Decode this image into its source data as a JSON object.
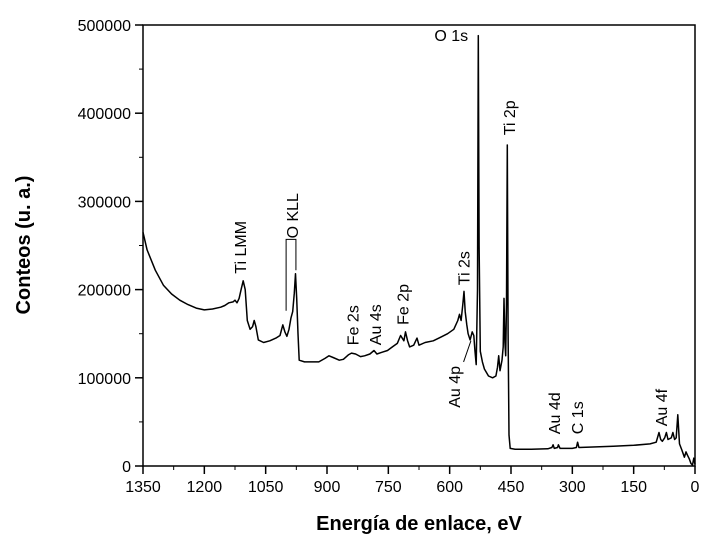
{
  "chart_data": {
    "type": "line",
    "title": "",
    "xlabel": "Energía de enlace, eV",
    "ylabel": "Conteos (u. a.)",
    "xlim": [
      1350,
      0
    ],
    "ylim": [
      0,
      500000
    ],
    "x_reversed": true,
    "grid": false,
    "legend": "none",
    "x_ticks": [
      1350,
      1200,
      1050,
      900,
      750,
      600,
      450,
      300,
      150,
      0
    ],
    "y_ticks": [
      0,
      100000,
      200000,
      300000,
      400000,
      500000
    ],
    "series": [
      {
        "color": "#000000",
        "points": [
          [
            1350,
            265000
          ],
          [
            1340,
            245000
          ],
          [
            1320,
            222000
          ],
          [
            1300,
            205000
          ],
          [
            1280,
            195000
          ],
          [
            1260,
            188000
          ],
          [
            1240,
            183000
          ],
          [
            1220,
            179000
          ],
          [
            1200,
            177000
          ],
          [
            1180,
            178000
          ],
          [
            1160,
            180000
          ],
          [
            1150,
            182000
          ],
          [
            1140,
            185000
          ],
          [
            1130,
            186000
          ],
          [
            1125,
            188000
          ],
          [
            1120,
            185000
          ],
          [
            1115,
            190000
          ],
          [
            1110,
            200000
          ],
          [
            1105,
            210000
          ],
          [
            1100,
            200000
          ],
          [
            1095,
            165000
          ],
          [
            1088,
            155000
          ],
          [
            1082,
            158000
          ],
          [
            1078,
            165000
          ],
          [
            1074,
            158000
          ],
          [
            1068,
            143000
          ],
          [
            1055,
            140000
          ],
          [
            1040,
            142000
          ],
          [
            1025,
            145000
          ],
          [
            1015,
            148000
          ],
          [
            1008,
            160000
          ],
          [
            1003,
            152000
          ],
          [
            998,
            147000
          ],
          [
            993,
            155000
          ],
          [
            988,
            168000
          ],
          [
            984,
            175000
          ],
          [
            980,
            196000
          ],
          [
            977,
            218000
          ],
          [
            974,
            190000
          ],
          [
            971,
            150000
          ],
          [
            968,
            120000
          ],
          [
            955,
            118000
          ],
          [
            940,
            118000
          ],
          [
            920,
            118000
          ],
          [
            905,
            122000
          ],
          [
            895,
            125000
          ],
          [
            885,
            123000
          ],
          [
            870,
            120000
          ],
          [
            860,
            121000
          ],
          [
            848,
            126000
          ],
          [
            840,
            128000
          ],
          [
            830,
            127000
          ],
          [
            818,
            124000
          ],
          [
            808,
            125000
          ],
          [
            795,
            127000
          ],
          [
            785,
            131000
          ],
          [
            778,
            127000
          ],
          [
            765,
            129000
          ],
          [
            752,
            131000
          ],
          [
            740,
            135000
          ],
          [
            728,
            139000
          ],
          [
            720,
            148000
          ],
          [
            712,
            142000
          ],
          [
            708,
            152000
          ],
          [
            703,
            142000
          ],
          [
            698,
            135000
          ],
          [
            688,
            137000
          ],
          [
            680,
            145000
          ],
          [
            675,
            137000
          ],
          [
            660,
            140000
          ],
          [
            640,
            142000
          ],
          [
            622,
            146000
          ],
          [
            605,
            150000
          ],
          [
            590,
            155000
          ],
          [
            580,
            165000
          ],
          [
            576,
            172000
          ],
          [
            572,
            165000
          ],
          [
            568,
            183000
          ],
          [
            565,
            198000
          ],
          [
            562,
            175000
          ],
          [
            558,
            160000
          ],
          [
            555,
            150000
          ],
          [
            550,
            143000
          ],
          [
            545,
            152000
          ],
          [
            541,
            148000
          ],
          [
            538,
            130000
          ],
          [
            535,
            115000
          ],
          [
            532,
            200000
          ],
          [
            530,
            488000
          ],
          [
            528,
            250000
          ],
          [
            525,
            130000
          ],
          [
            520,
            118000
          ],
          [
            515,
            110000
          ],
          [
            505,
            102000
          ],
          [
            495,
            100000
          ],
          [
            487,
            102000
          ],
          [
            483,
            112000
          ],
          [
            480,
            125000
          ],
          [
            477,
            108000
          ],
          [
            472,
            120000
          ],
          [
            469,
            135000
          ],
          [
            467,
            190000
          ],
          [
            465,
            140000
          ],
          [
            463,
            125000
          ],
          [
            461,
            185000
          ],
          [
            459,
            364000
          ],
          [
            457,
            150000
          ],
          [
            455,
            35000
          ],
          [
            452,
            20000
          ],
          [
            440,
            19000
          ],
          [
            400,
            19000
          ],
          [
            360,
            19500
          ],
          [
            350,
            21000
          ],
          [
            347,
            24000
          ],
          [
            344,
            20000
          ],
          [
            336,
            21000
          ],
          [
            334,
            24000
          ],
          [
            330,
            20000
          ],
          [
            300,
            20000
          ],
          [
            290,
            21000
          ],
          [
            287,
            27000
          ],
          [
            284,
            21000
          ],
          [
            250,
            21500
          ],
          [
            200,
            22500
          ],
          [
            150,
            23500
          ],
          [
            110,
            25000
          ],
          [
            95,
            27000
          ],
          [
            88,
            38000
          ],
          [
            84,
            30000
          ],
          [
            80,
            28000
          ],
          [
            74,
            32000
          ],
          [
            70,
            38000
          ],
          [
            66,
            30000
          ],
          [
            58,
            32000
          ],
          [
            54,
            38000
          ],
          [
            50,
            30000
          ],
          [
            46,
            32000
          ],
          [
            42,
            58000
          ],
          [
            38,
            25000
          ],
          [
            32,
            18000
          ],
          [
            26,
            10000
          ],
          [
            22,
            16000
          ],
          [
            18,
            12000
          ],
          [
            14,
            8000
          ],
          [
            10,
            3000
          ],
          [
            6,
            1000
          ],
          [
            3,
            9000
          ],
          [
            0,
            2000
          ]
        ]
      }
    ],
    "annotations": [
      {
        "text": "Ti LMM",
        "x": 1113,
        "y": 218000,
        "rotate": true,
        "anchor": "start"
      },
      {
        "text": "O KLL",
        "x": 985,
        "y": 258000,
        "rotate": true,
        "anchor": "start"
      },
      {
        "text": "Fe 2s",
        "x": 838,
        "y": 137000,
        "rotate": true,
        "anchor": "start"
      },
      {
        "text": "Au 4s",
        "x": 782,
        "y": 137000,
        "rotate": true,
        "anchor": "start"
      },
      {
        "text": "Fe 2p",
        "x": 715,
        "y": 160000,
        "rotate": true,
        "anchor": "start"
      },
      {
        "text": "Ti 2s",
        "x": 566,
        "y": 205000,
        "rotate": true,
        "anchor": "start"
      },
      {
        "text": "Au 4p",
        "x": 590,
        "y": 66000,
        "rotate": true,
        "anchor": "start"
      },
      {
        "text": "O 1s",
        "x": 596,
        "y": 482000,
        "rotate": false,
        "anchor": "middle"
      },
      {
        "text": "Ti 2p",
        "x": 455,
        "y": 375000,
        "rotate": true,
        "anchor": "start"
      },
      {
        "text": "Au 4d",
        "x": 345,
        "y": 36000,
        "rotate": true,
        "anchor": "start"
      },
      {
        "text": "C 1s",
        "x": 288,
        "y": 36000,
        "rotate": true,
        "anchor": "start"
      },
      {
        "text": "Au 4f",
        "x": 83,
        "y": 45000,
        "rotate": true,
        "anchor": "start"
      }
    ]
  }
}
